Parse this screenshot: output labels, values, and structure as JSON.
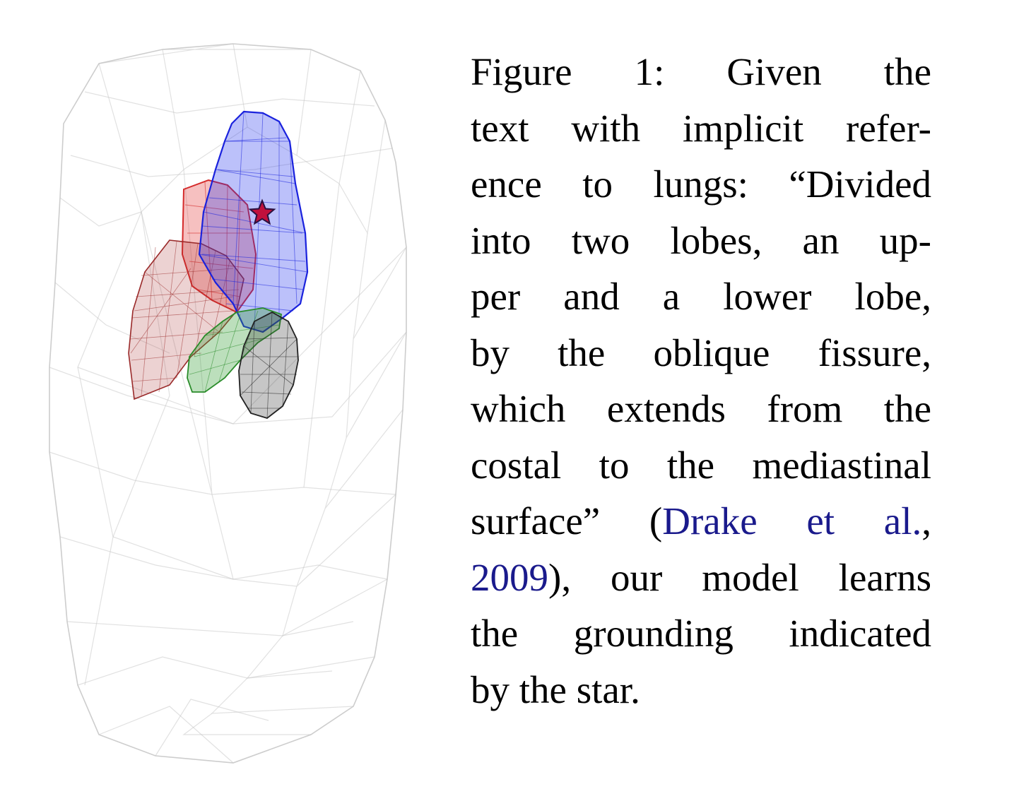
{
  "figure": {
    "star_marker": "star-icon"
  },
  "caption": {
    "lines": [
      "Figure 1: Given the",
      "text with implicit refer-",
      "ence to lungs: “Divided",
      "into two lobes, an up-",
      "per and a lower lobe,",
      "by the oblique fissure,",
      "which extends from the",
      "costal to the mediastinal",
      "surface” (",
      "Drake et al.",
      ",",
      "2009",
      "), our model learns",
      "the grounding indicated",
      "by the star."
    ]
  },
  "colors": {
    "body_outline": "#c8c8c8",
    "lobe_blue": "#2233ee",
    "lobe_red_upper": "#e23a3a",
    "lobe_red_lower": "#a83232",
    "lobe_green": "#2f9a2f",
    "lobe_black": "#333333",
    "star": "#c0103c",
    "citation": "#1a1a8c"
  }
}
